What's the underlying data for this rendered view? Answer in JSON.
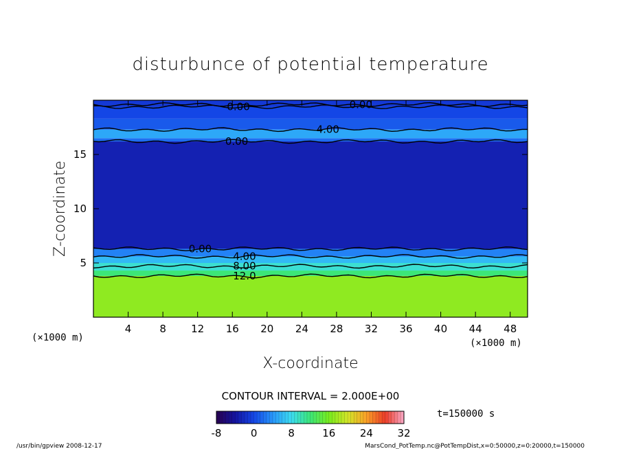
{
  "chart_data": {
    "type": "heatmap",
    "title": "disturbunce of potential temperature",
    "xlabel": "X-coordinate",
    "ylabel": "Z-coordinate",
    "x_unit": "(×1000 m)",
    "y_unit": "(×1000 m)",
    "xlim": [
      0,
      50
    ],
    "ylim": [
      0,
      20
    ],
    "x_ticks": [
      4,
      8,
      12,
      16,
      20,
      24,
      28,
      32,
      36,
      40,
      44,
      48
    ],
    "y_ticks": [
      5,
      10,
      15
    ],
    "layers": [
      {
        "z_from": 0,
        "z_to": 3.8,
        "value": 17
      },
      {
        "z_from": 3.8,
        "z_to": 4.3,
        "value": 12
      },
      {
        "z_from": 4.3,
        "z_to": 5.0,
        "value": 9
      },
      {
        "z_from": 5.0,
        "z_to": 5.6,
        "value": 6
      },
      {
        "z_from": 5.6,
        "z_to": 6.3,
        "value": 3
      },
      {
        "z_from": 6.3,
        "z_to": 16.2,
        "value": -3
      },
      {
        "z_from": 16.2,
        "z_to": 16.5,
        "value": 2
      },
      {
        "z_from": 16.5,
        "z_to": 17.3,
        "value": 5
      },
      {
        "z_from": 17.3,
        "z_to": 18.3,
        "value": 1
      },
      {
        "z_from": 18.3,
        "z_to": 19.4,
        "value": 0
      },
      {
        "z_from": 19.4,
        "z_to": 20,
        "value": -1
      }
    ],
    "contour_lines": [
      {
        "z": 3.8,
        "label": "12.0",
        "label_x": 17.4
      },
      {
        "z": 4.7,
        "label": "8.00",
        "label_x": 17.4
      },
      {
        "z": 5.6,
        "label": "4.00",
        "label_x": 17.4
      },
      {
        "z": 6.3,
        "label": "0.00",
        "label_x": 12.3
      },
      {
        "z": 16.2,
        "label": "0.00",
        "label_x": 16.5
      },
      {
        "z": 17.3,
        "label": "4.00",
        "label_x": 27.0
      },
      {
        "z": 19.4,
        "label": "0.00",
        "label_x": 16.7
      },
      {
        "z": 19.6,
        "label": "0.00",
        "label_x": 30.8
      }
    ],
    "contour_interval_label": "CONTOUR INTERVAL = 2.000E+00",
    "colorbar": {
      "min": -8,
      "max": 32,
      "tick_labels": [
        "-8",
        "0",
        "8",
        "16",
        "24",
        "32"
      ],
      "tick_values": [
        -8,
        0,
        8,
        16,
        24,
        32
      ]
    },
    "time_label": "t=150000 s"
  },
  "footer": {
    "left": "/usr/bin/gpview   2008-12-17",
    "right": "MarsCond_PotTemp.nc@PotTempDist,x=0:50000,z=0:20000,t=150000"
  }
}
